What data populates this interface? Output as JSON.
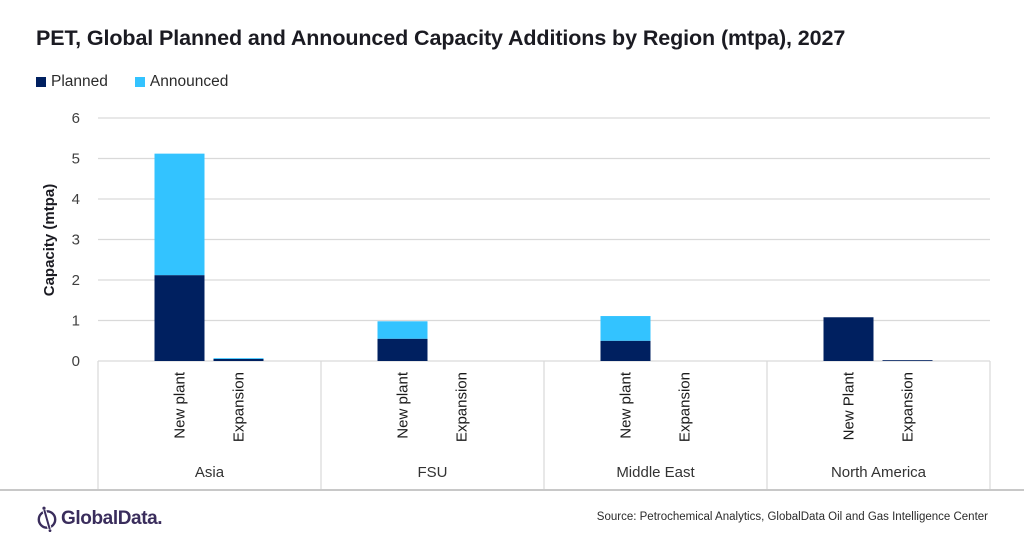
{
  "chart_data": {
    "type": "bar",
    "stacked": true,
    "title": "PET, Global Planned and Announced Capacity Additions by Region (mtpa), 2027",
    "xlabel": "",
    "ylabel": "Capacity (mtpa)",
    "ylim": [
      0,
      6
    ],
    "yticks": [
      "0",
      "1",
      "2",
      "3",
      "4",
      "5",
      "6"
    ],
    "grid": true,
    "legend_position": "top-left",
    "groups": [
      {
        "name": "Asia",
        "categories": [
          "New plant",
          "Expansion"
        ]
      },
      {
        "name": "FSU",
        "categories": [
          "New plant",
          "Expansion"
        ]
      },
      {
        "name": "Middle East",
        "categories": [
          "New plant",
          "Expansion"
        ]
      },
      {
        "name": "North America",
        "categories": [
          "New Plant",
          "Expansion"
        ]
      }
    ],
    "categories": [
      "Asia - New plant",
      "Asia - Expansion",
      "FSU - New plant",
      "FSU - Expansion",
      "Middle East - New plant",
      "Middle East - Expansion",
      "North America - New Plant",
      "North America - Expansion"
    ],
    "series": [
      {
        "name": "Planned",
        "color": "#002060",
        "values": [
          2.12,
          0.05,
          0.55,
          0.0,
          0.5,
          0.0,
          1.08,
          0.02
        ]
      },
      {
        "name": "Announced",
        "color": "#33C3FF",
        "values": [
          3.0,
          0.02,
          0.43,
          0.0,
          0.61,
          0.0,
          0.0,
          0.0
        ]
      }
    ]
  },
  "legend": {
    "items": [
      {
        "label": "Planned",
        "color": "#002060"
      },
      {
        "label": "Announced",
        "color": "#33C3FF"
      }
    ]
  },
  "footer": {
    "brand": "GlobalData.",
    "source": "Source: Petrochemical  Analytics, GlobalData Oil and Gas Intelligence Center"
  },
  "colors": {
    "grid": "#d9d9d9",
    "axis": "#d9d9d9",
    "brand": "#3a2d5c"
  }
}
